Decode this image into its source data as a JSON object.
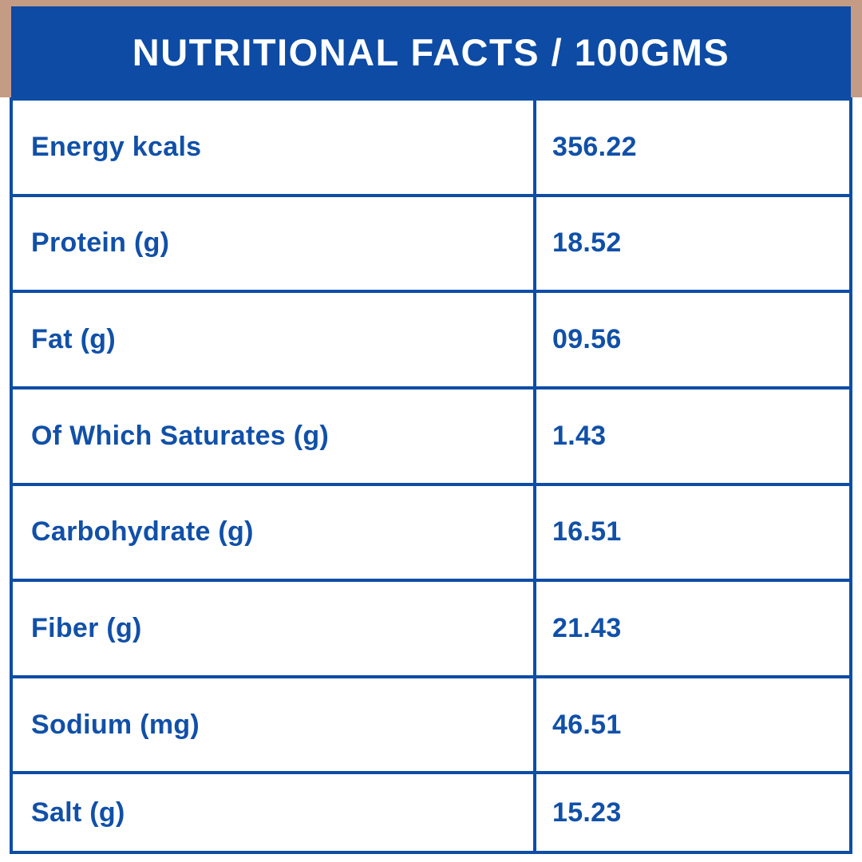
{
  "title": "NUTRITIONAL FACTS / 100GMS",
  "colors": {
    "header_bg": "#0d4ba4",
    "frame_tan": "#c49c85",
    "border_blue": "#0e4da6",
    "text_blue": "#1150a8",
    "table_bg": "#ffffff",
    "title_text": "#ffffff"
  },
  "table": {
    "rows": [
      {
        "label": "Energy kcals",
        "value": "356.22"
      },
      {
        "label": "Protein (g)",
        "value": "18.52"
      },
      {
        "label": "Fat (g)",
        "value": "09.56"
      },
      {
        "label": "Of Which Saturates (g)",
        "value": "1.43"
      },
      {
        "label": "Carbohydrate (g)",
        "value": "16.51"
      },
      {
        "label": "Fiber (g)",
        "value": "21.43"
      },
      {
        "label": "Sodium (mg)",
        "value": "46.51"
      },
      {
        "label": "Salt (g)",
        "value": "15.23"
      }
    ]
  }
}
